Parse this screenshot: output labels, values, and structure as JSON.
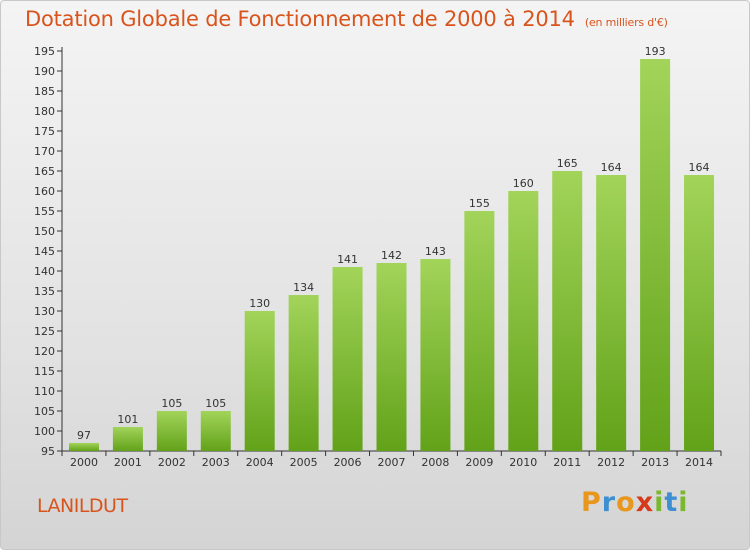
{
  "header": {
    "title": "Dotation Globale de Fonctionnement de 2000 à 2014",
    "subtitle": "(en milliers d'€)"
  },
  "commune": "LANILDUT",
  "logo": {
    "letters": [
      "P",
      "r",
      "o",
      "x",
      "i",
      "t",
      "i"
    ],
    "colors": [
      "#e8961c",
      "#3c8fd1",
      "#e8961c",
      "#d63a1a",
      "#7ab82e",
      "#3c8fd1",
      "#7ab82e"
    ]
  },
  "colors": {
    "bar_light": "#a2d45a",
    "bar_dark": "#62a219",
    "accent": "#d8541c"
  },
  "chart_data": {
    "type": "bar",
    "categories": [
      "2000",
      "2001",
      "2002",
      "2003",
      "2004",
      "2005",
      "2006",
      "2007",
      "2008",
      "2009",
      "2010",
      "2011",
      "2012",
      "2013",
      "2014"
    ],
    "values": [
      97,
      101,
      105,
      105,
      130,
      134,
      141,
      142,
      143,
      155,
      160,
      165,
      164,
      193,
      164
    ],
    "ylim": [
      95,
      195
    ],
    "yticks": [
      95,
      100,
      105,
      110,
      115,
      120,
      125,
      130,
      135,
      140,
      145,
      150,
      155,
      160,
      165,
      170,
      175,
      180,
      185,
      190,
      195
    ],
    "xlabel": "",
    "ylabel": "",
    "grid": false
  }
}
